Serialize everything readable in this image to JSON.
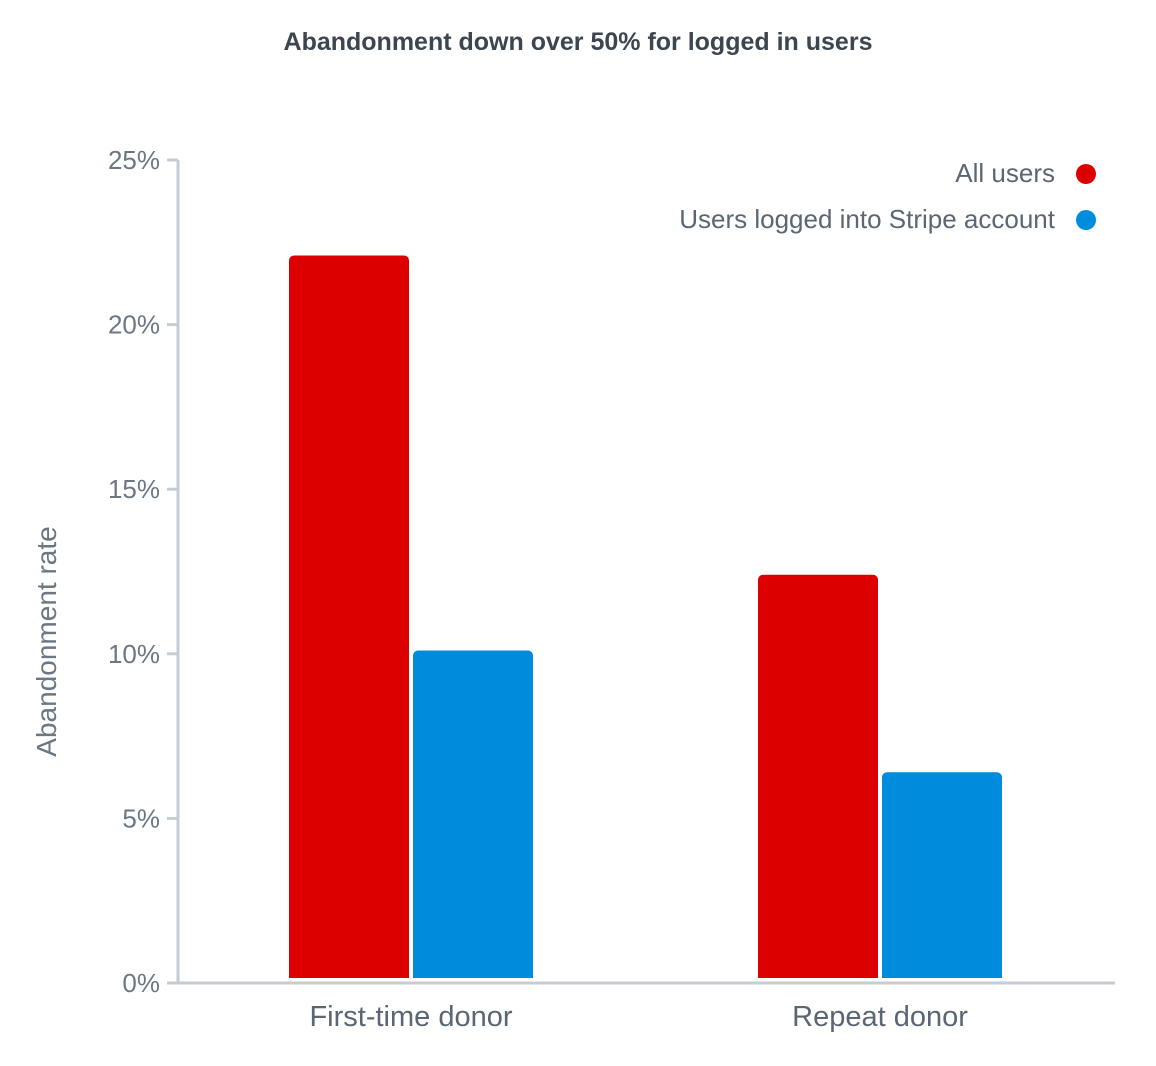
{
  "chart_data": {
    "type": "bar",
    "title": "Abandonment down over 50% for logged in users",
    "xlabel": "",
    "ylabel": "Abandonment rate",
    "categories": [
      "First-time donor",
      "Repeat donor"
    ],
    "series": [
      {
        "name": "All users",
        "color": "#dd0000",
        "values": [
          22.1,
          12.4
        ]
      },
      {
        "name": "Users logged into Stripe account",
        "color": "#008cdd",
        "values": [
          10.1,
          6.4
        ]
      }
    ],
    "ylim": [
      0,
      25
    ],
    "yticks": [
      0,
      5,
      10,
      15,
      20,
      25
    ],
    "ytick_labels": [
      "0%",
      "5%",
      "10%",
      "15%",
      "20%",
      "25%"
    ],
    "grid": false,
    "legend_position": "top-right"
  }
}
